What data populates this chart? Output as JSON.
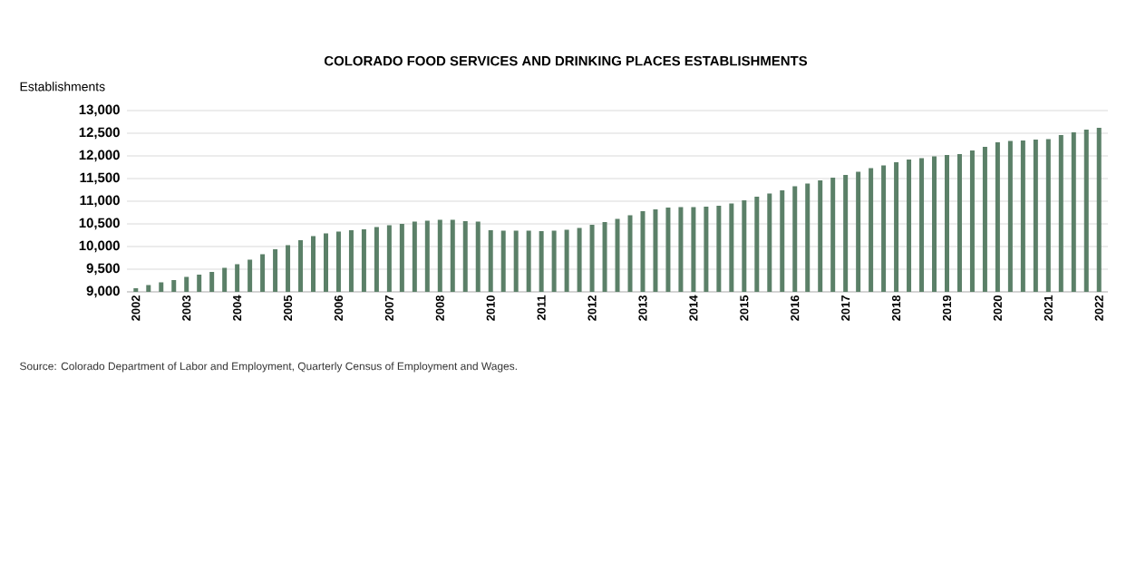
{
  "chart_data": {
    "type": "bar",
    "title": "COLORADO FOOD SERVICES AND DRINKING PLACES ESTABLISHMENTS",
    "ylabel": "Establishments",
    "annotations": [
      "Source: Colorado Department of Labor and Employment, Quarterly Census of Employment and Wages."
    ],
    "categories": [
      "2002",
      null,
      null,
      null,
      "2003",
      null,
      null,
      null,
      "2004",
      null,
      null,
      null,
      "2005",
      null,
      null,
      null,
      "2006",
      null,
      null,
      null,
      "2007",
      null,
      null,
      null,
      "2008",
      null,
      null,
      null,
      "2010",
      null,
      null,
      null,
      "2011",
      null,
      null,
      null,
      "2012",
      null,
      null,
      null,
      "2013",
      null,
      null,
      null,
      "2014",
      null,
      null,
      null,
      "2015",
      null,
      null,
      null,
      "2016",
      null,
      null,
      null,
      "2017",
      null,
      null,
      null,
      "2018",
      null,
      null,
      null,
      "2019",
      null,
      null,
      null,
      "2020",
      null,
      null,
      null,
      "2021",
      null,
      null,
      null,
      "2022"
    ],
    "values": [
      9080,
      9150,
      9210,
      9260,
      9330,
      9380,
      9440,
      9530,
      9610,
      9710,
      9830,
      9940,
      10030,
      10140,
      10230,
      10290,
      10330,
      10360,
      10380,
      10430,
      10470,
      10500,
      10550,
      10570,
      10590,
      10590,
      10560,
      10550,
      10360,
      10350,
      10350,
      10350,
      10340,
      10350,
      10370,
      10410,
      10480,
      10540,
      10610,
      10690,
      10780,
      10820,
      10860,
      10870,
      10870,
      10880,
      10900,
      10950,
      11020,
      11100,
      11170,
      11240,
      11330,
      11390,
      11460,
      11520,
      11580,
      11650,
      11730,
      11790,
      11860,
      11920,
      11950,
      11990,
      12020,
      12040,
      12120,
      12200,
      12300,
      12330,
      12340,
      12360,
      12370,
      12460,
      12520,
      12580,
      12620
    ],
    "color": "#5b8068",
    "ylim": [
      9000,
      13000
    ],
    "yticks": [
      {
        "value": 9000,
        "label": "9,000"
      },
      {
        "value": 9500,
        "label": "9,500"
      },
      {
        "value": 10000,
        "label": "10,000"
      },
      {
        "value": 10500,
        "label": "10,500"
      },
      {
        "value": 11000,
        "label": "11,000"
      },
      {
        "value": 11500,
        "label": "11,500"
      },
      {
        "value": 12000,
        "label": "12,000"
      },
      {
        "value": 12500,
        "label": "12,500"
      },
      {
        "value": 13000,
        "label": "13,000"
      }
    ],
    "grid": "y"
  }
}
